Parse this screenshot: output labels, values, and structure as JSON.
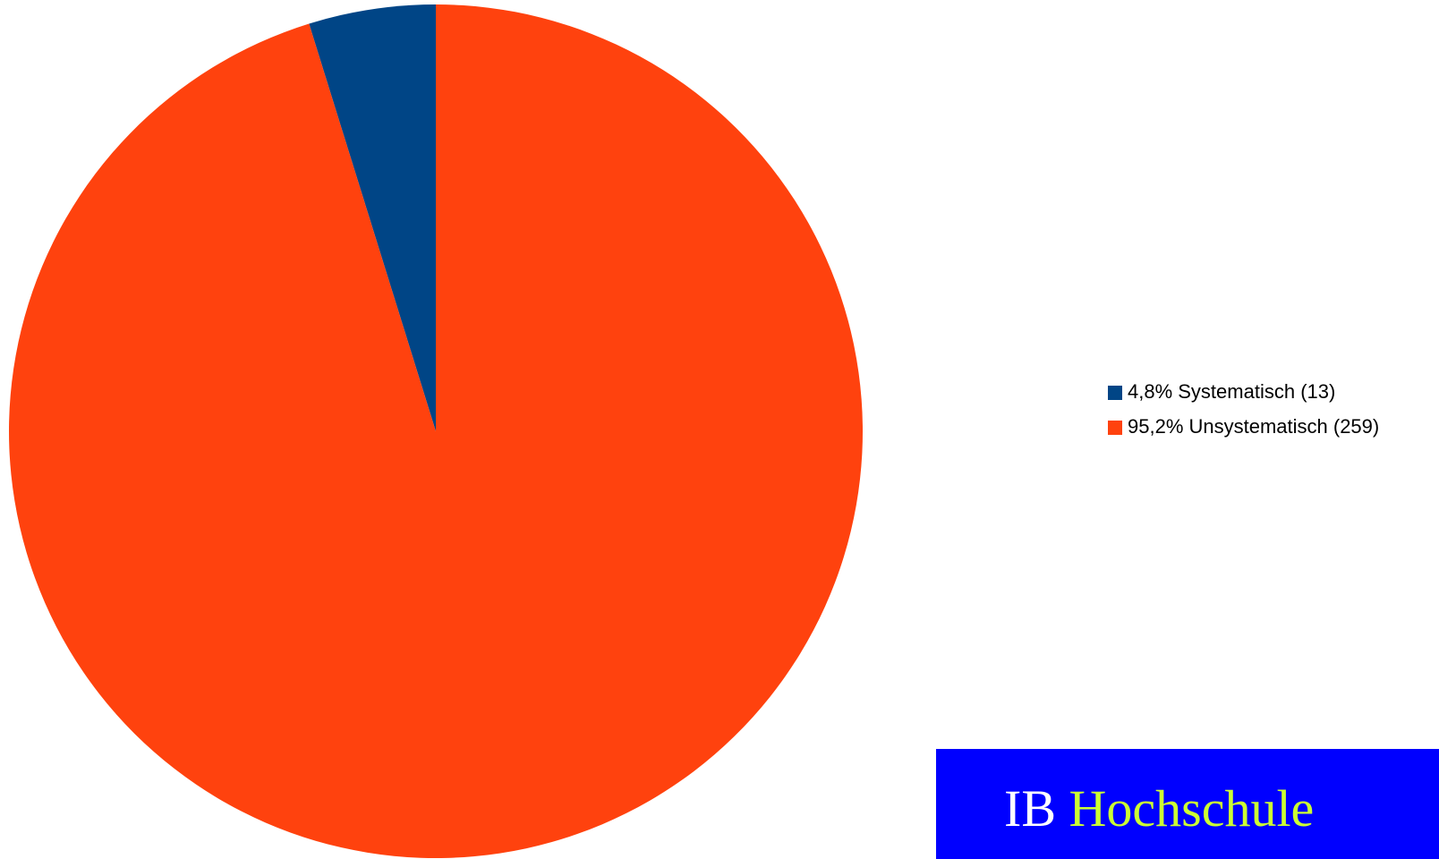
{
  "chart_data": {
    "type": "pie",
    "categories": [
      "4,8% Systematisch (13)",
      "95,2% Unsystematisch (259)"
    ],
    "values": [
      4.8,
      95.2
    ],
    "colors": [
      "#004586",
      "#ff420e"
    ],
    "start": "top",
    "direction": "counterclockwise",
    "legend": "right"
  },
  "logo": {
    "prefix": "IB",
    "name": "Hochschule"
  }
}
